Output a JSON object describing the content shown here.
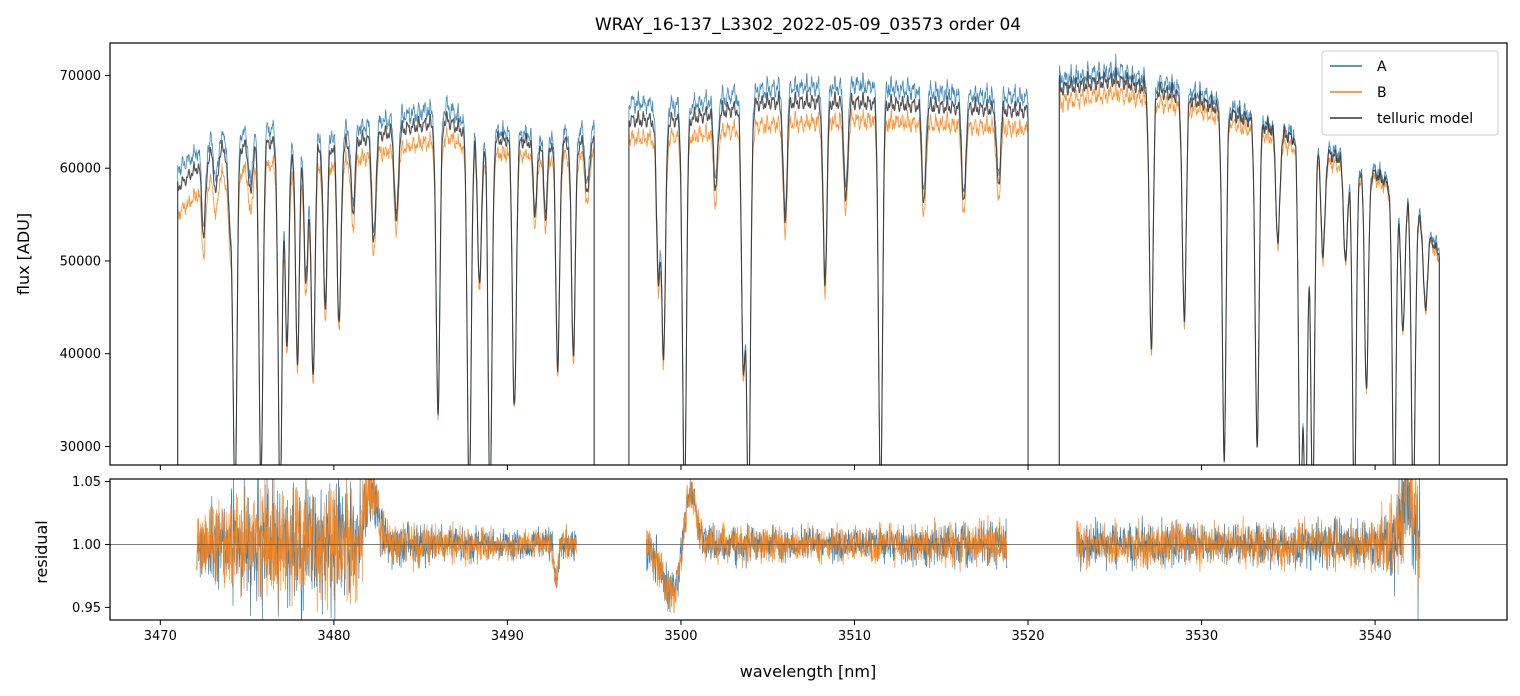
{
  "chart_data": [
    {
      "type": "line",
      "title": "WRAY_16-137_L3302_2022-05-09_03573  order 04",
      "xlabel": "",
      "ylabel": "flux [ADU]",
      "xlim": [
        3467.1,
        3547.6
      ],
      "ylim": [
        28000,
        73500
      ],
      "yticks": [
        30000,
        40000,
        50000,
        60000,
        70000
      ],
      "ytick_labels": [
        "30000",
        "40000",
        "50000",
        "60000",
        "70000"
      ],
      "xticks": [
        3470,
        3480,
        3490,
        3500,
        3510,
        3520,
        3530,
        3540
      ],
      "legend": {
        "location": "top-right",
        "entries": [
          "A",
          "B",
          "telluric model"
        ]
      },
      "segments": [
        [
          3471.0,
          3495.0
        ],
        [
          3497.0,
          3520.0
        ],
        [
          3521.8,
          3543.7
        ]
      ],
      "dips": [
        {
          "x": 3472.5,
          "depth": 0.22
        },
        {
          "x": 3473.2,
          "depth": 0.12
        },
        {
          "x": 3474.0,
          "depth": 0.2
        },
        {
          "x": 3474.3,
          "depth": 1.0
        },
        {
          "x": 3475.2,
          "depth": 0.14
        },
        {
          "x": 3475.8,
          "depth": 0.95
        },
        {
          "x": 3476.9,
          "depth": 1.0
        },
        {
          "x": 3477.3,
          "depth": 0.55
        },
        {
          "x": 3477.9,
          "depth": 0.6
        },
        {
          "x": 3478.4,
          "depth": 0.4
        },
        {
          "x": 3478.8,
          "depth": 0.65
        },
        {
          "x": 3479.5,
          "depth": 0.45
        },
        {
          "x": 3480.3,
          "depth": 0.5
        },
        {
          "x": 3481.1,
          "depth": 0.2
        },
        {
          "x": 3482.3,
          "depth": 0.3
        },
        {
          "x": 3483.6,
          "depth": 0.25
        },
        {
          "x": 3486.0,
          "depth": 0.75
        },
        {
          "x": 3487.8,
          "depth": 1.0
        },
        {
          "x": 3488.4,
          "depth": 0.4
        },
        {
          "x": 3489.0,
          "depth": 1.0
        },
        {
          "x": 3490.4,
          "depth": 0.75
        },
        {
          "x": 3491.6,
          "depth": 0.2
        },
        {
          "x": 3492.2,
          "depth": 0.2
        },
        {
          "x": 3492.9,
          "depth": 0.62
        },
        {
          "x": 3493.8,
          "depth": 0.58
        },
        {
          "x": 3494.6,
          "depth": 0.15
        },
        {
          "x": 3498.7,
          "depth": 0.4
        },
        {
          "x": 3499.0,
          "depth": 0.6
        },
        {
          "x": 3500.2,
          "depth": 1.0
        },
        {
          "x": 3502.0,
          "depth": 0.2
        },
        {
          "x": 3503.6,
          "depth": 0.65
        },
        {
          "x": 3503.9,
          "depth": 1.0
        },
        {
          "x": 3506.0,
          "depth": 0.3
        },
        {
          "x": 3508.3,
          "depth": 0.45
        },
        {
          "x": 3509.5,
          "depth": 0.25
        },
        {
          "x": 3511.5,
          "depth": 1.0
        },
        {
          "x": 3514.0,
          "depth": 0.25
        },
        {
          "x": 3516.3,
          "depth": 0.25
        },
        {
          "x": 3518.3,
          "depth": 0.2
        },
        {
          "x": 3527.1,
          "depth": 0.62
        },
        {
          "x": 3529.0,
          "depth": 0.55
        },
        {
          "x": 3531.3,
          "depth": 0.88
        },
        {
          "x": 3533.2,
          "depth": 0.85
        },
        {
          "x": 3534.4,
          "depth": 0.3
        },
        {
          "x": 3535.7,
          "depth": 1.0
        },
        {
          "x": 3536.0,
          "depth": 1.0
        },
        {
          "x": 3536.4,
          "depth": 1.0
        },
        {
          "x": 3537.0,
          "depth": 0.3
        },
        {
          "x": 3538.3,
          "depth": 0.3
        },
        {
          "x": 3538.8,
          "depth": 1.0
        },
        {
          "x": 3539.5,
          "depth": 0.65
        },
        {
          "x": 3541.1,
          "depth": 1.0
        },
        {
          "x": 3541.6,
          "depth": 0.45
        },
        {
          "x": 3542.2,
          "depth": 1.0
        },
        {
          "x": 3542.9,
          "depth": 0.3
        }
      ],
      "series": [
        {
          "name": "A",
          "color": "#1f77b4",
          "continuum": [
            {
              "x": 3471.0,
              "y": 61000
            },
            {
              "x": 3473.0,
              "y": 64500
            },
            {
              "x": 3476.0,
              "y": 65500
            },
            {
              "x": 3480.0,
              "y": 65000
            },
            {
              "x": 3484.0,
              "y": 67000
            },
            {
              "x": 3486.5,
              "y": 68000
            },
            {
              "x": 3488.0,
              "y": 65500
            },
            {
              "x": 3492.0,
              "y": 65000
            },
            {
              "x": 3495.0,
              "y": 65500
            },
            {
              "x": 3497.0,
              "y": 68500
            },
            {
              "x": 3500.0,
              "y": 68000
            },
            {
              "x": 3505.0,
              "y": 70000
            },
            {
              "x": 3510.0,
              "y": 70500
            },
            {
              "x": 3515.0,
              "y": 69500
            },
            {
              "x": 3520.0,
              "y": 69000
            },
            {
              "x": 3521.8,
              "y": 71000
            },
            {
              "x": 3525.0,
              "y": 72000
            },
            {
              "x": 3530.0,
              "y": 69500
            },
            {
              "x": 3534.0,
              "y": 66000
            },
            {
              "x": 3537.0,
              "y": 63500
            },
            {
              "x": 3540.0,
              "y": 61000
            },
            {
              "x": 3542.0,
              "y": 58000
            },
            {
              "x": 3543.7,
              "y": 52000
            }
          ]
        },
        {
          "name": "B",
          "color": "#ff7f0e",
          "continuum": [
            {
              "x": 3471.0,
              "y": 56000
            },
            {
              "x": 3473.0,
              "y": 60000
            },
            {
              "x": 3476.0,
              "y": 61500
            },
            {
              "x": 3480.0,
              "y": 61500
            },
            {
              "x": 3484.0,
              "y": 63500
            },
            {
              "x": 3486.5,
              "y": 64500
            },
            {
              "x": 3488.0,
              "y": 63000
            },
            {
              "x": 3492.0,
              "y": 62500
            },
            {
              "x": 3495.0,
              "y": 62500
            },
            {
              "x": 3497.0,
              "y": 64500
            },
            {
              "x": 3500.0,
              "y": 64500
            },
            {
              "x": 3505.0,
              "y": 66000
            },
            {
              "x": 3510.0,
              "y": 66500
            },
            {
              "x": 3515.0,
              "y": 66000
            },
            {
              "x": 3520.0,
              "y": 65500
            },
            {
              "x": 3521.8,
              "y": 68500
            },
            {
              "x": 3525.0,
              "y": 69500
            },
            {
              "x": 3530.0,
              "y": 67500
            },
            {
              "x": 3534.0,
              "y": 64500
            },
            {
              "x": 3537.0,
              "y": 62000
            },
            {
              "x": 3540.0,
              "y": 60000
            },
            {
              "x": 3542.0,
              "y": 57000
            },
            {
              "x": 3543.7,
              "y": 51000
            }
          ]
        },
        {
          "name": "telluric model",
          "color": "#333333",
          "continuum": [
            {
              "x": 3471.0,
              "y": 59000
            },
            {
              "x": 3473.0,
              "y": 63000
            },
            {
              "x": 3476.0,
              "y": 64000
            },
            {
              "x": 3480.0,
              "y": 63500
            },
            {
              "x": 3484.0,
              "y": 65500
            },
            {
              "x": 3486.5,
              "y": 66500
            },
            {
              "x": 3488.0,
              "y": 64500
            },
            {
              "x": 3492.0,
              "y": 64000
            },
            {
              "x": 3495.0,
              "y": 64000
            },
            {
              "x": 3497.0,
              "y": 66500
            },
            {
              "x": 3500.0,
              "y": 66500
            },
            {
              "x": 3505.0,
              "y": 68500
            },
            {
              "x": 3510.0,
              "y": 68500
            },
            {
              "x": 3515.0,
              "y": 68000
            },
            {
              "x": 3520.0,
              "y": 67500
            },
            {
              "x": 3521.8,
              "y": 70000
            },
            {
              "x": 3525.0,
              "y": 71000
            },
            {
              "x": 3530.0,
              "y": 68500
            },
            {
              "x": 3534.0,
              "y": 65500
            },
            {
              "x": 3537.0,
              "y": 63000
            },
            {
              "x": 3540.0,
              "y": 60500
            },
            {
              "x": 3542.0,
              "y": 57500
            },
            {
              "x": 3543.7,
              "y": 51500
            }
          ]
        }
      ]
    },
    {
      "type": "line",
      "title": "",
      "xlabel": "wavelength [nm]",
      "ylabel": "residual",
      "xlim": [
        3467.1,
        3547.6
      ],
      "ylim": [
        0.94,
        1.052
      ],
      "yticks": [
        0.95,
        1.0,
        1.05
      ],
      "ytick_labels": [
        "0.95",
        "1.00",
        "1.05"
      ],
      "xticks": [
        3470,
        3480,
        3490,
        3500,
        3510,
        3520,
        3530,
        3540
      ],
      "xtick_labels": [
        "3470",
        "3480",
        "3490",
        "3500",
        "3510",
        "3520",
        "3530",
        "3540"
      ],
      "reference_line": 1.0,
      "segments": [
        [
          3472.1,
          3494.0
        ],
        [
          3498.0,
          3518.8
        ],
        [
          3522.8,
          3542.6
        ]
      ],
      "noise_profile": [
        {
          "x": 3472.1,
          "amp": 0.018
        },
        {
          "x": 3474.0,
          "amp": 0.03
        },
        {
          "x": 3477.0,
          "amp": 0.04
        },
        {
          "x": 3481.0,
          "amp": 0.035
        },
        {
          "x": 3483.0,
          "amp": 0.014
        },
        {
          "x": 3490.0,
          "amp": 0.009
        },
        {
          "x": 3494.0,
          "amp": 0.01
        },
        {
          "x": 3498.0,
          "amp": 0.012
        },
        {
          "x": 3502.0,
          "amp": 0.012
        },
        {
          "x": 3510.0,
          "amp": 0.01
        },
        {
          "x": 3518.8,
          "amp": 0.014
        },
        {
          "x": 3522.8,
          "amp": 0.013
        },
        {
          "x": 3530.0,
          "amp": 0.012
        },
        {
          "x": 3540.0,
          "amp": 0.014
        },
        {
          "x": 3542.6,
          "amp": 0.045
        }
      ],
      "features": [
        {
          "x": 3482.2,
          "amplitude": 0.045,
          "width": 0.35
        },
        {
          "x": 3499.5,
          "amplitude": -0.04,
          "width": 0.6
        },
        {
          "x": 3500.5,
          "amplitude": 0.05,
          "width": 0.35
        },
        {
          "x": 3492.8,
          "amplitude": -0.03,
          "width": 0.12
        },
        {
          "x": 3541.8,
          "amplitude": 0.04,
          "width": 0.25
        }
      ],
      "series": [
        {
          "name": "A",
          "color": "#1f77b4"
        },
        {
          "name": "B",
          "color": "#ff7f0e"
        }
      ]
    }
  ]
}
